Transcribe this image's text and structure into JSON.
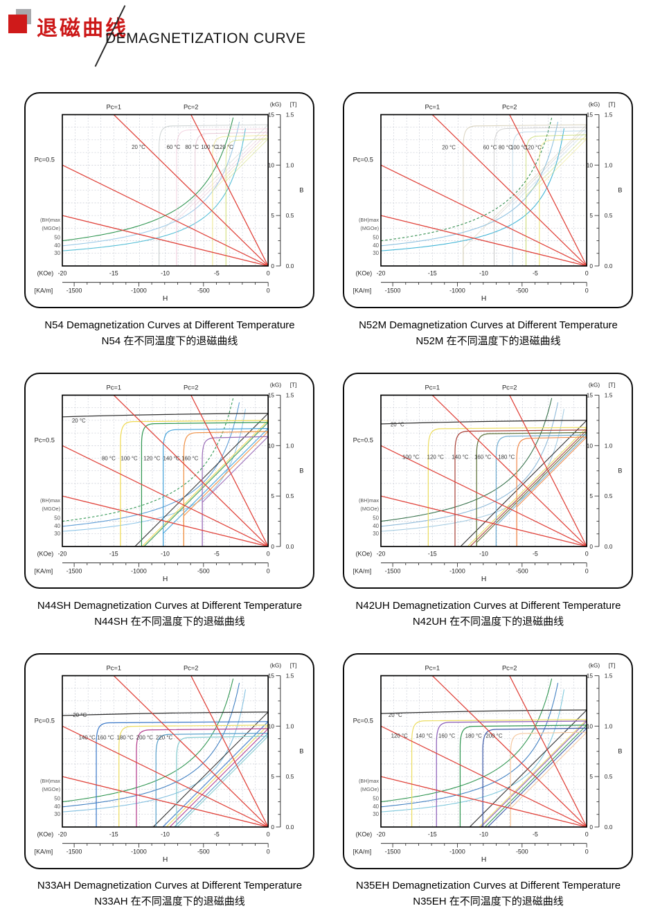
{
  "header": {
    "title_zh": "退磁曲线",
    "title_en": "DEMAGNETIZATION CURVE"
  },
  "axes": {
    "kg_unit": "(kG)",
    "t_unit": "[T]",
    "b_label": "B",
    "h_label": "H",
    "koe_label": "(KOe)",
    "kam_label": "[KA/m]",
    "kg_ticks": [
      15,
      10,
      5,
      0
    ],
    "t_ticks": [
      "1.5",
      "1.0",
      "0.5",
      "0.0"
    ],
    "koe_ticks": [
      -20,
      -15,
      -10,
      -5,
      0
    ],
    "kam_ticks": [
      -1500,
      -1000,
      -500,
      0
    ],
    "pc05_label": "Pc=0.5",
    "bhmax_label": "(BH)max",
    "mgoe_label": "(MGOe)",
    "bh_values": [
      50,
      40,
      30
    ],
    "h_range_koe": [
      -20,
      0
    ],
    "b_range_kg": [
      0,
      15
    ],
    "grid_step": 1.25
  },
  "load_lines": {
    "color": "#e0423a",
    "lines": [
      {
        "label": "Pc=1",
        "end": [
          -15,
          15
        ]
      },
      {
        "label": "Pc=2",
        "end": [
          -7.5,
          15
        ]
      },
      {
        "label": "Pc=0.5",
        "end": [
          -20,
          10
        ]
      },
      {
        "label": "",
        "end": [
          -20,
          5
        ]
      }
    ]
  },
  "chart_data": [
    {
      "type": "line",
      "grade": "N54",
      "title_en": "N54 Demagnetization Curves at Different Temperature",
      "title_zh": "N54 在不同温度下的退磁曲线",
      "xlabel": "H",
      "ylabel": "B",
      "bh_contours_mgoe": [
        50,
        40,
        30
      ],
      "bh_colors": [
        "#2e9550",
        "#9ccae8",
        "#54bed6"
      ],
      "bh_dash": [
        false,
        false,
        false
      ],
      "soft": true,
      "series": [
        {
          "name": "20 °C",
          "color": "#b3bdbd",
          "br_kg": 14.0,
          "hcj_koe": -10.6,
          "label_at": [
            -12.6,
            11.6
          ]
        },
        {
          "name": "60 °C",
          "color": "#ecbdd1",
          "br_kg": 13.6,
          "hcj_koe": -8.9,
          "label_at": [
            -9.2,
            11.6
          ]
        },
        {
          "name": "80 °C",
          "color": "#dcaec2",
          "br_kg": 13.25,
          "hcj_koe": -7.1,
          "label_at": [
            -7.4,
            11.6
          ]
        },
        {
          "name": "100 °C",
          "color": "#e9e175",
          "br_kg": 12.95,
          "hcj_koe": -5.4,
          "label_at": [
            -5.7,
            11.6
          ]
        },
        {
          "name": "120 °C",
          "color": "#c6d758",
          "br_kg": 12.6,
          "hcj_koe": -4.1,
          "label_at": [
            -4.2,
            11.6
          ]
        }
      ]
    },
    {
      "type": "line",
      "grade": "N52M",
      "title_en": "N52M Demagnetization Curves at Different Temperature",
      "title_zh": "N52M 在不同温度下的退磁曲线",
      "xlabel": "H",
      "ylabel": "B",
      "bh_contours_mgoe": [
        50,
        40,
        30
      ],
      "bh_colors": [
        "#2e8b4a",
        "#8cc0e0",
        "#3eb4d6"
      ],
      "bh_dash": [
        true,
        false,
        false
      ],
      "soft": true,
      "series": [
        {
          "name": "20 °C",
          "color": "#c6bd9e",
          "br_kg": 14.0,
          "hcj_koe": -12.0,
          "label_at": [
            -13.4,
            11.55
          ]
        },
        {
          "name": "60 °C",
          "color": "#b9b9b9",
          "br_kg": 13.75,
          "hcj_koe": -9.0,
          "label_at": [
            -9.4,
            11.55
          ]
        },
        {
          "name": "80 °C",
          "color": "#a5c8dd",
          "br_kg": 13.4,
          "hcj_koe": -7.2,
          "label_at": [
            -7.9,
            11.55
          ]
        },
        {
          "name": "100 °C",
          "color": "#b9d049",
          "br_kg": 13.0,
          "hcj_koe": -5.9,
          "label_at": [
            -6.6,
            11.55
          ]
        },
        {
          "name": "120 °C",
          "color": "#e6dd5e",
          "br_kg": 12.6,
          "hcj_koe": -4.6,
          "label_at": [
            -5.2,
            11.55
          ]
        }
      ]
    },
    {
      "type": "line",
      "grade": "N44SH",
      "title_en": "N44SH Demagnetization Curves at Different Temperature",
      "title_zh": "N44SH 在不同温度下的退磁曲线",
      "xlabel": "H",
      "ylabel": "B",
      "bh_contours_mgoe": [
        50,
        40,
        30
      ],
      "bh_colors": [
        "#2e9550",
        "#5b9bd5",
        "#8fc6e8"
      ],
      "bh_dash": [
        true,
        false,
        false
      ],
      "soft": false,
      "series": [
        {
          "name": "20 °C",
          "color": "#2b2b2b",
          "br_kg": 13.2,
          "hcj_koe": -30,
          "label_at": [
            -18.4,
            12.3
          ]
        },
        {
          "name": "80 °C",
          "color": "#f0da52",
          "br_kg": 12.5,
          "hcj_koe": -14.35,
          "label_at": [
            -15.5,
            8.55
          ]
        },
        {
          "name": "100 °C",
          "color": "#2e9550",
          "br_kg": 12.3,
          "hcj_koe": -12.3,
          "label_at": [
            -13.5,
            8.55
          ]
        },
        {
          "name": "120 °C",
          "color": "#45a4dc",
          "br_kg": 11.7,
          "hcj_koe": -10.2,
          "label_at": [
            -11.3,
            8.55
          ]
        },
        {
          "name": "140 °C",
          "color": "#f09145",
          "br_kg": 11.4,
          "hcj_koe": -8.2,
          "label_at": [
            -9.4,
            8.55
          ]
        },
        {
          "name": "160 °C",
          "color": "#9a6cb8",
          "br_kg": 10.9,
          "hcj_koe": -6.4,
          "label_at": [
            -7.6,
            8.55
          ]
        }
      ]
    },
    {
      "type": "line",
      "grade": "N42UH",
      "title_en": "N42UH Demagnetization Curves at Different Temperature",
      "title_zh": "N42UH 在不同温度下的退磁曲线",
      "xlabel": "H",
      "ylabel": "B",
      "bh_contours_mgoe": [
        50,
        40,
        30
      ],
      "bh_colors": [
        "#35704a",
        "#8cb8d8",
        "#a6cce2"
      ],
      "bh_dash": [
        false,
        false,
        false
      ],
      "soft": false,
      "series": [
        {
          "name": "20 °C",
          "color": "#2b2b2b",
          "br_kg": 12.5,
          "hcj_koe": -30,
          "label_at": [
            -18.4,
            11.9
          ]
        },
        {
          "name": "100 °C",
          "color": "#ecdd60",
          "br_kg": 11.8,
          "hcj_koe": -15.4,
          "label_at": [
            -17.1,
            8.7
          ]
        },
        {
          "name": "120 °C",
          "color": "#a84138",
          "br_kg": 11.55,
          "hcj_koe": -12.8,
          "label_at": [
            -14.7,
            8.7
          ]
        },
        {
          "name": "140 °C",
          "color": "#5c7038",
          "br_kg": 11.3,
          "hcj_koe": -10.7,
          "label_at": [
            -12.3,
            8.7
          ]
        },
        {
          "name": "160 °C",
          "color": "#72aed2",
          "br_kg": 11.05,
          "hcj_koe": -8.8,
          "label_at": [
            -10.1,
            8.7
          ]
        },
        {
          "name": "180 °C",
          "color": "#f08a4b",
          "br_kg": 10.85,
          "hcj_koe": -6.8,
          "label_at": [
            -7.8,
            8.7
          ]
        }
      ]
    },
    {
      "type": "line",
      "grade": "N33AH",
      "title_en": "N33AH Demagnetization Curves at Different Temperature",
      "title_zh": "N33AH 在不同温度下的退磁曲线",
      "xlabel": "H",
      "ylabel": "B",
      "bh_contours_mgoe": [
        50,
        40,
        30
      ],
      "bh_colors": [
        "#2e9550",
        "#3f7fc1",
        "#82c0e0"
      ],
      "bh_dash": [
        false,
        false,
        false
      ],
      "soft": false,
      "series": [
        {
          "name": "20 °C",
          "color": "#2b2b2b",
          "br_kg": 11.4,
          "hcj_koe": -30,
          "label_at": [
            -18.3,
            10.9
          ]
        },
        {
          "name": "140 °C",
          "color": "#3a78c8",
          "br_kg": 10.45,
          "hcj_koe": -16.7,
          "label_at": [
            -17.6,
            8.7
          ]
        },
        {
          "name": "160 °C",
          "color": "#ecdd60",
          "br_kg": 10.1,
          "hcj_koe": -14.5,
          "label_at": [
            -15.8,
            8.7
          ]
        },
        {
          "name": "180 °C",
          "color": "#b43c8c",
          "br_kg": 9.75,
          "hcj_koe": -12.8,
          "label_at": [
            -13.9,
            8.7
          ]
        },
        {
          "name": "200 °C",
          "color": "#58a0cc",
          "br_kg": 9.3,
          "hcj_koe": -10.9,
          "label_at": [
            -12.0,
            8.7
          ]
        },
        {
          "name": "220 °C",
          "color": "#85cbd0",
          "br_kg": 9.0,
          "hcj_koe": -8.9,
          "label_at": [
            -10.1,
            8.7
          ]
        }
      ]
    },
    {
      "type": "line",
      "grade": "N35EH",
      "title_en": "N35EH Demagnetization Curves at Different Temperature",
      "title_zh": "N35EH 在不同温度下的退磁曲线",
      "xlabel": "H",
      "ylabel": "B",
      "bh_contours_mgoe": [
        50,
        40,
        30
      ],
      "bh_colors": [
        "#2e9550",
        "#3f7fc1",
        "#7ec8dc"
      ],
      "bh_dash": [
        false,
        false,
        false
      ],
      "soft": false,
      "series": [
        {
          "name": "20 °C",
          "color": "#2b2b2b",
          "br_kg": 11.6,
          "hcj_koe": -30,
          "label_at": [
            -18.6,
            10.9
          ]
        },
        {
          "name": "120 °C",
          "color": "#ecdd60",
          "br_kg": 10.65,
          "hcj_koe": -17.0,
          "label_at": [
            -18.2,
            8.85
          ]
        },
        {
          "name": "140 °C",
          "color": "#8a5cb8",
          "br_kg": 10.5,
          "hcj_koe": -14.6,
          "label_at": [
            -15.8,
            8.85
          ]
        },
        {
          "name": "160 °C",
          "color": "#2e9550",
          "br_kg": 10.1,
          "hcj_koe": -12.3,
          "label_at": [
            -13.6,
            8.85
          ]
        },
        {
          "name": "180 °C",
          "color": "#3a57a8",
          "br_kg": 9.8,
          "hcj_koe": -10.1,
          "label_at": [
            -11.0,
            8.85
          ]
        },
        {
          "name": "200 °C",
          "color": "#f5c8a0",
          "br_kg": 9.4,
          "hcj_koe": -7.4,
          "label_at": [
            -9.0,
            8.85
          ]
        }
      ]
    }
  ]
}
